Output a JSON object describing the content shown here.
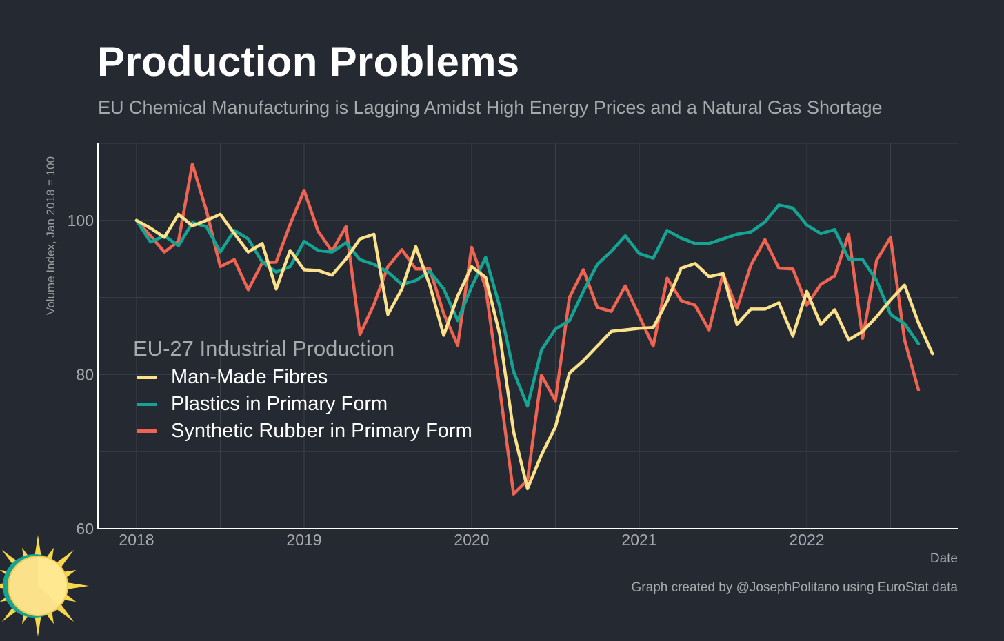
{
  "title": "Production Problems",
  "subtitle": "EU Chemical Manufacturing is Lagging Amidst High Energy Prices and a Natural Gas Shortage",
  "caption": "Graph created by @JosephPolitano using EuroStat data",
  "colors": {
    "background": "#252931",
    "grid": "#3b3f47",
    "axis": "#ffffff",
    "text_muted": "#a7a9ad"
  },
  "chart_data": {
    "type": "line",
    "title": "Production Problems",
    "subtitle": "EU Chemical Manufacturing is Lagging Amidst High Energy Prices and a Natural Gas Shortage",
    "xlabel": "Date",
    "ylabel": "Volume Index, Jan 2018 = 100",
    "x_start": "2018-01",
    "x_ticks": [
      "2018",
      "2019",
      "2020",
      "2021",
      "2022"
    ],
    "y_ticks": [
      60,
      80,
      100
    ],
    "ylim": [
      60,
      110
    ],
    "grid": true,
    "legend": {
      "title": "EU-27 Industrial Production",
      "position": "middle-left"
    },
    "series": [
      {
        "name": "Man-Made Fibres",
        "color": "#fbe28a",
        "values": [
          100.0,
          99.0,
          97.8,
          100.8,
          99.3,
          100.0,
          100.8,
          98.3,
          95.9,
          97.0,
          91.1,
          96.1,
          93.6,
          93.5,
          92.9,
          95.0,
          97.6,
          98.2,
          87.8,
          91.1,
          96.6,
          91.6,
          85.1,
          90.2,
          94.0,
          92.6,
          85.3,
          72.6,
          65.2,
          69.6,
          73.2,
          80.2,
          81.8,
          83.7,
          85.6,
          85.8,
          86.0,
          86.1,
          89.5,
          93.8,
          94.4,
          92.7,
          93.1,
          86.5,
          88.5,
          88.5,
          89.3,
          85.0,
          90.8,
          86.5,
          88.4,
          84.5,
          85.6,
          87.5,
          89.7,
          91.6,
          86.7,
          82.7
        ]
      },
      {
        "name": "Plastics in Primary Form",
        "color": "#15a394",
        "values": [
          100.0,
          97.2,
          98.0,
          96.7,
          99.7,
          99.2,
          95.9,
          98.7,
          97.6,
          94.6,
          93.3,
          94.0,
          97.3,
          96.1,
          95.9,
          97.1,
          94.9,
          94.3,
          93.3,
          91.7,
          92.2,
          93.4,
          91.1,
          87.0,
          91.4,
          95.2,
          88.9,
          80.4,
          75.9,
          83.2,
          85.9,
          87.0,
          90.8,
          94.3,
          96.0,
          98.0,
          95.7,
          95.1,
          98.7,
          97.7,
          97.0,
          97.0,
          97.6,
          98.2,
          98.5,
          99.8,
          102.0,
          101.6,
          99.4,
          98.3,
          98.8,
          95.0,
          94.9,
          92.2,
          87.8,
          86.6,
          84.0
        ]
      },
      {
        "name": "Synthetic Rubber in Primary Form",
        "color": "#ee6352",
        "values": [
          100.0,
          98.0,
          95.9,
          97.3,
          107.3,
          101.3,
          94.0,
          94.9,
          91.0,
          94.5,
          94.6,
          99.5,
          103.9,
          98.6,
          96.0,
          99.2,
          85.2,
          89.1,
          94.0,
          96.2,
          93.7,
          93.7,
          87.9,
          83.8,
          96.5,
          91.3,
          78.3,
          64.5,
          66.3,
          79.9,
          76.6,
          90.0,
          93.6,
          88.7,
          88.2,
          91.5,
          87.6,
          83.7,
          92.5,
          89.6,
          89.0,
          85.8,
          93.1,
          88.6,
          94.2,
          97.5,
          93.8,
          93.7,
          89.0,
          91.7,
          92.8,
          98.2,
          84.7,
          94.8,
          97.8,
          84.5,
          78.0
        ]
      }
    ]
  }
}
